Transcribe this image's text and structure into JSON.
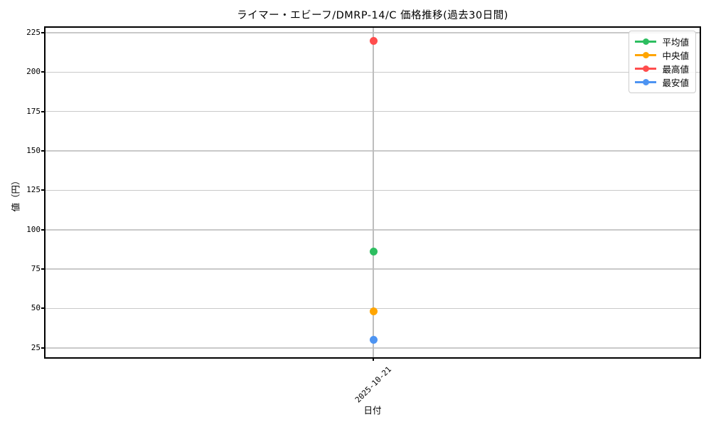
{
  "chart_data": {
    "type": "scatter",
    "title": "ライマー・エビーフ/DMRP-14/C 価格推移(過去30日間)",
    "xlabel": "日付",
    "ylabel": "値（円）",
    "x_categories": [
      "2025-10-21"
    ],
    "yticks": [
      25,
      50,
      75,
      100,
      125,
      150,
      175,
      200,
      225
    ],
    "ylim": [
      18.6,
      228.6
    ],
    "grid": true,
    "legend_position": "upper right",
    "series": [
      {
        "name": "平均値",
        "color": "#2dbe60",
        "values": [
          86
        ]
      },
      {
        "name": "中央値",
        "color": "#ffa500",
        "values": [
          48
        ]
      },
      {
        "name": "最高値",
        "color": "#ff4d4d",
        "values": [
          220
        ]
      },
      {
        "name": "最安値",
        "color": "#4d94f2",
        "values": [
          30
        ]
      }
    ]
  }
}
